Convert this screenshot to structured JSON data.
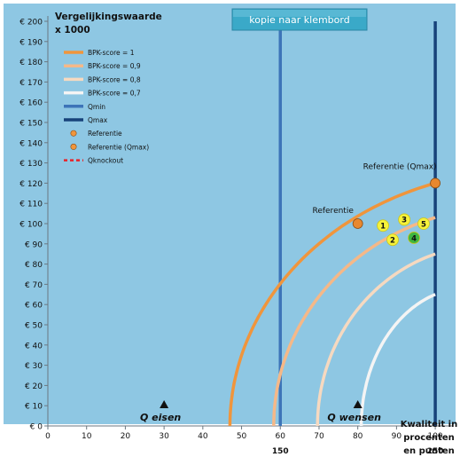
{
  "button": {
    "label": "kopie naar klembord"
  },
  "colors": {
    "plot_bg": "#8ec7e3",
    "outer_bg": "#ffffff",
    "curve_1": "#f0953c",
    "curve_09": "#f5b888",
    "curve_08": "#f6d9c0",
    "curve_07": "#f4f4f4",
    "qmin": "#3d74b8",
    "qmax": "#17427a",
    "knockout": "#e8232a",
    "point_yellow": "#f6f23a",
    "point_green": "#3fb63f",
    "button_fill": "#3aa9c8"
  },
  "chart_data": {
    "type": "line",
    "ylabel_lines": [
      "Vergelijkingswaarde",
      "x 1000"
    ],
    "xlabel_lines": [
      "Kwaliteit in",
      "procenten",
      "en punten"
    ],
    "y_ticks": [
      0,
      10,
      20,
      30,
      40,
      50,
      60,
      70,
      80,
      90,
      100,
      110,
      120,
      130,
      140,
      150,
      160,
      170,
      180,
      190,
      200
    ],
    "y_tick_prefix": "€ ",
    "x_ticks": [
      0,
      10,
      20,
      30,
      40,
      50,
      60,
      70,
      80,
      90,
      100
    ],
    "xlim": [
      0,
      110
    ],
    "ylim": [
      0,
      200
    ],
    "x_points_labels": [
      {
        "x": 60,
        "label": "150"
      },
      {
        "x": 100,
        "label": "250"
      }
    ],
    "legend": [
      {
        "label": "BPK-score = 1",
        "kind": "line",
        "color_key": "curve_1"
      },
      {
        "label": "BPK-score = 0,9",
        "kind": "line",
        "color_key": "curve_09"
      },
      {
        "label": "BPK-score = 0,8",
        "kind": "line",
        "color_key": "curve_08"
      },
      {
        "label": "BPK-score = 0,7",
        "kind": "line",
        "color_key": "curve_07"
      },
      {
        "label": "Qmin",
        "kind": "line",
        "color_key": "qmin"
      },
      {
        "label": "Qmax",
        "kind": "line",
        "color_key": "qmax"
      },
      {
        "label": "Referentie",
        "kind": "dot",
        "color_key": "curve_1"
      },
      {
        "label": "Referentie (Qmax)",
        "kind": "dot",
        "color_key": "curve_1"
      },
      {
        "label": "Qknockout",
        "kind": "dash",
        "color_key": "knockout"
      }
    ],
    "series": [
      {
        "name": "BPK-score = 1",
        "color_key": "curve_1",
        "x0": 47,
        "x_end": 100,
        "y_end": 120
      },
      {
        "name": "BPK-score = 0,9",
        "color_key": "curve_09",
        "x0": 58.3,
        "x_end": 100,
        "y_end": 103
      },
      {
        "name": "BPK-score = 0,8",
        "color_key": "curve_08",
        "x0": 69.6,
        "x_end": 100,
        "y_end": 85
      },
      {
        "name": "BPK-score = 0,7",
        "color_key": "curve_07",
        "x0": 80.9,
        "x_end": 100,
        "y_end": 65
      }
    ],
    "vlines": [
      {
        "name": "Qmin",
        "x": 60,
        "color_key": "qmin"
      },
      {
        "name": "Qmax",
        "x": 100,
        "color_key": "qmax"
      }
    ],
    "reference_points": [
      {
        "label": "Referentie",
        "x": 80,
        "y": 100
      },
      {
        "label": "Referentie (Qmax)",
        "x": 100,
        "y": 120
      }
    ],
    "offers": [
      {
        "label": "1",
        "x": 86.5,
        "y": 99,
        "color_key": "point_yellow"
      },
      {
        "label": "2",
        "x": 89,
        "y": 92,
        "color_key": "point_yellow"
      },
      {
        "label": "3",
        "x": 92,
        "y": 102,
        "color_key": "point_yellow"
      },
      {
        "label": "4",
        "x": 94.5,
        "y": 93,
        "color_key": "point_green"
      },
      {
        "label": "5",
        "x": 97,
        "y": 100,
        "color_key": "point_yellow"
      }
    ],
    "markers": [
      {
        "label": "Q eisen",
        "x": 30
      },
      {
        "label": "Q wensen",
        "x": 80
      }
    ]
  }
}
